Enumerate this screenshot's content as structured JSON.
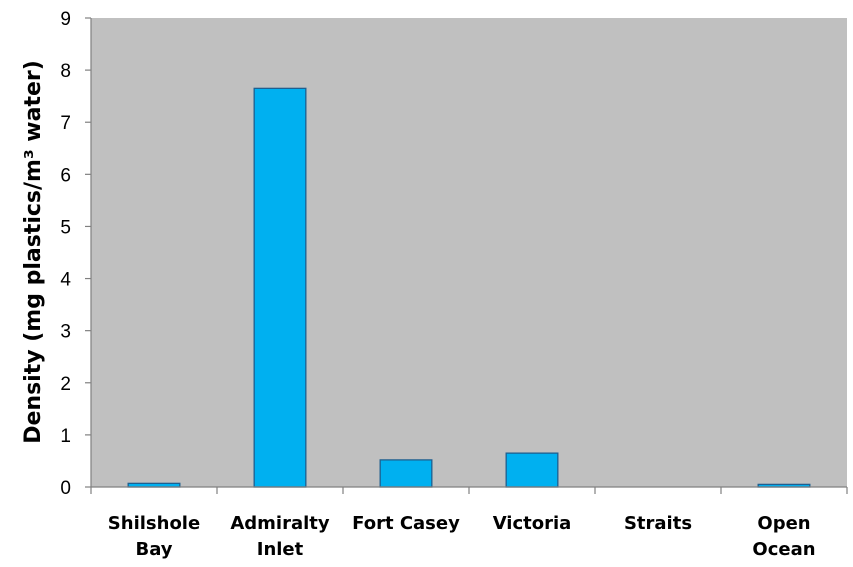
{
  "chart_data": {
    "type": "bar",
    "title": "",
    "xlabel": "",
    "ylabel": "Density (mg plastics/m³ water)",
    "ylim": [
      0,
      9
    ],
    "yticks": [
      0,
      1,
      2,
      3,
      4,
      5,
      6,
      7,
      8,
      9
    ],
    "grid": false,
    "legend": "none",
    "categories": [
      [
        "Shilshole",
        "Bay"
      ],
      [
        "Admiralty",
        "Inlet"
      ],
      [
        "Fort Casey"
      ],
      [
        "Victoria"
      ],
      [
        "Straits"
      ],
      [
        "Open",
        "Ocean"
      ]
    ],
    "values": [
      0.07,
      7.65,
      0.52,
      0.65,
      0.0,
      0.05
    ],
    "colors": {
      "bar_fill": "#00b0f0",
      "bar_stroke": "#1f5f8f",
      "plot_background": "#c0c0c0",
      "axis": "#808080"
    }
  }
}
